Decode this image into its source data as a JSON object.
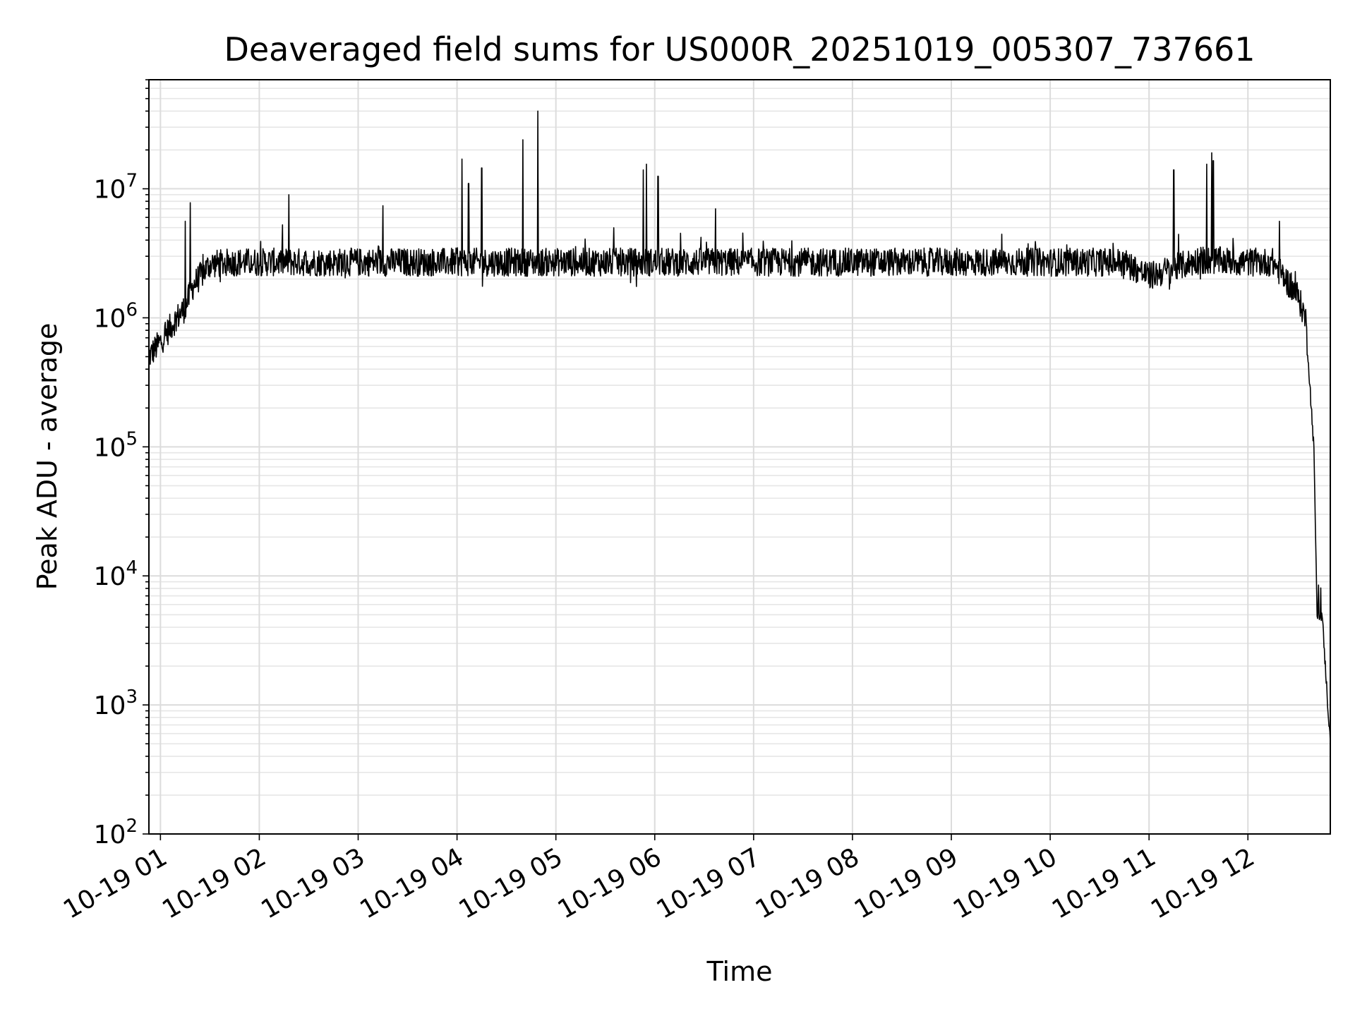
{
  "chart_data": {
    "type": "line",
    "title": "Deaveraged field sums for US000R_20251019_005307_737661",
    "xlabel": "Time",
    "ylabel": "Peak ADU - average",
    "yscale": "log",
    "ylim": [
      100,
      70000000
    ],
    "xlim": [
      "2025-10-19 00:53",
      "2025-10-19 12:50"
    ],
    "grid": true,
    "legend": "none",
    "line_color": "#000000",
    "x_ticks": [
      "10-19 01",
      "10-19 02",
      "10-19 03",
      "10-19 04",
      "10-19 05",
      "10-19 06",
      "10-19 07",
      "10-19 08",
      "10-19 09",
      "10-19 10",
      "10-19 11",
      "10-19 12"
    ],
    "y_ticks": [
      {
        "base": "10",
        "exp": "2"
      },
      {
        "base": "10",
        "exp": "3"
      },
      {
        "base": "10",
        "exp": "4"
      },
      {
        "base": "10",
        "exp": "5"
      },
      {
        "base": "10",
        "exp": "6"
      },
      {
        "base": "10",
        "exp": "7"
      }
    ],
    "series": [
      {
        "x": [
          "2025-10-19 00:53",
          "2025-10-19 01:00",
          "2025-10-19 01:10",
          "2025-10-19 01:15",
          "2025-10-19 01:20",
          "2025-10-19 01:30",
          "2025-10-19 01:45",
          "2025-10-19 02:00",
          "2025-10-19 03:00",
          "2025-10-19 04:00",
          "2025-10-19 05:00",
          "2025-10-19 06:00",
          "2025-10-19 07:00",
          "2025-10-19 08:00",
          "2025-10-19 09:00",
          "2025-10-19 10:00",
          "2025-10-19 10:45",
          "2025-10-19 11:00",
          "2025-10-19 11:30",
          "2025-10-19 12:00",
          "2025-10-19 12:15",
          "2025-10-19 12:30",
          "2025-10-19 12:35",
          "2025-10-19 12:40",
          "2025-10-19 12:42",
          "2025-10-19 12:45",
          "2025-10-19 12:50"
        ],
        "y": [
          500000,
          650000,
          1000000,
          1200000,
          1800000,
          2600000,
          2700000,
          2700000,
          2700000,
          2700000,
          2700000,
          2700000,
          2700000,
          2700000,
          2700000,
          2700000,
          2700000,
          2100000,
          2800000,
          2700000,
          2700000,
          1500000,
          1000000,
          100000,
          5000,
          5000,
          500
        ]
      }
    ],
    "spikes": [
      {
        "x": "2025-10-19 01:15",
        "y": 5600000
      },
      {
        "x": "2025-10-19 01:18",
        "y": 7800000
      },
      {
        "x": "2025-10-19 02:18",
        "y": 9000000
      },
      {
        "x": "2025-10-19 03:15",
        "y": 7400000
      },
      {
        "x": "2025-10-19 04:03",
        "y": 17000000
      },
      {
        "x": "2025-10-19 04:07",
        "y": 11000000
      },
      {
        "x": "2025-10-19 04:15",
        "y": 14500000
      },
      {
        "x": "2025-10-19 04:40",
        "y": 24000000
      },
      {
        "x": "2025-10-19 04:49",
        "y": 40000000
      },
      {
        "x": "2025-10-19 05:53",
        "y": 14000000
      },
      {
        "x": "2025-10-19 05:55",
        "y": 15500000
      },
      {
        "x": "2025-10-19 06:02",
        "y": 12500000
      },
      {
        "x": "2025-10-19 06:37",
        "y": 7000000
      },
      {
        "x": "2025-10-19 11:15",
        "y": 14000000
      },
      {
        "x": "2025-10-19 11:35",
        "y": 15500000
      },
      {
        "x": "2025-10-19 11:38",
        "y": 19000000
      },
      {
        "x": "2025-10-19 11:39",
        "y": 16500000
      },
      {
        "x": "2025-10-19 12:19",
        "y": 5600000
      }
    ]
  }
}
